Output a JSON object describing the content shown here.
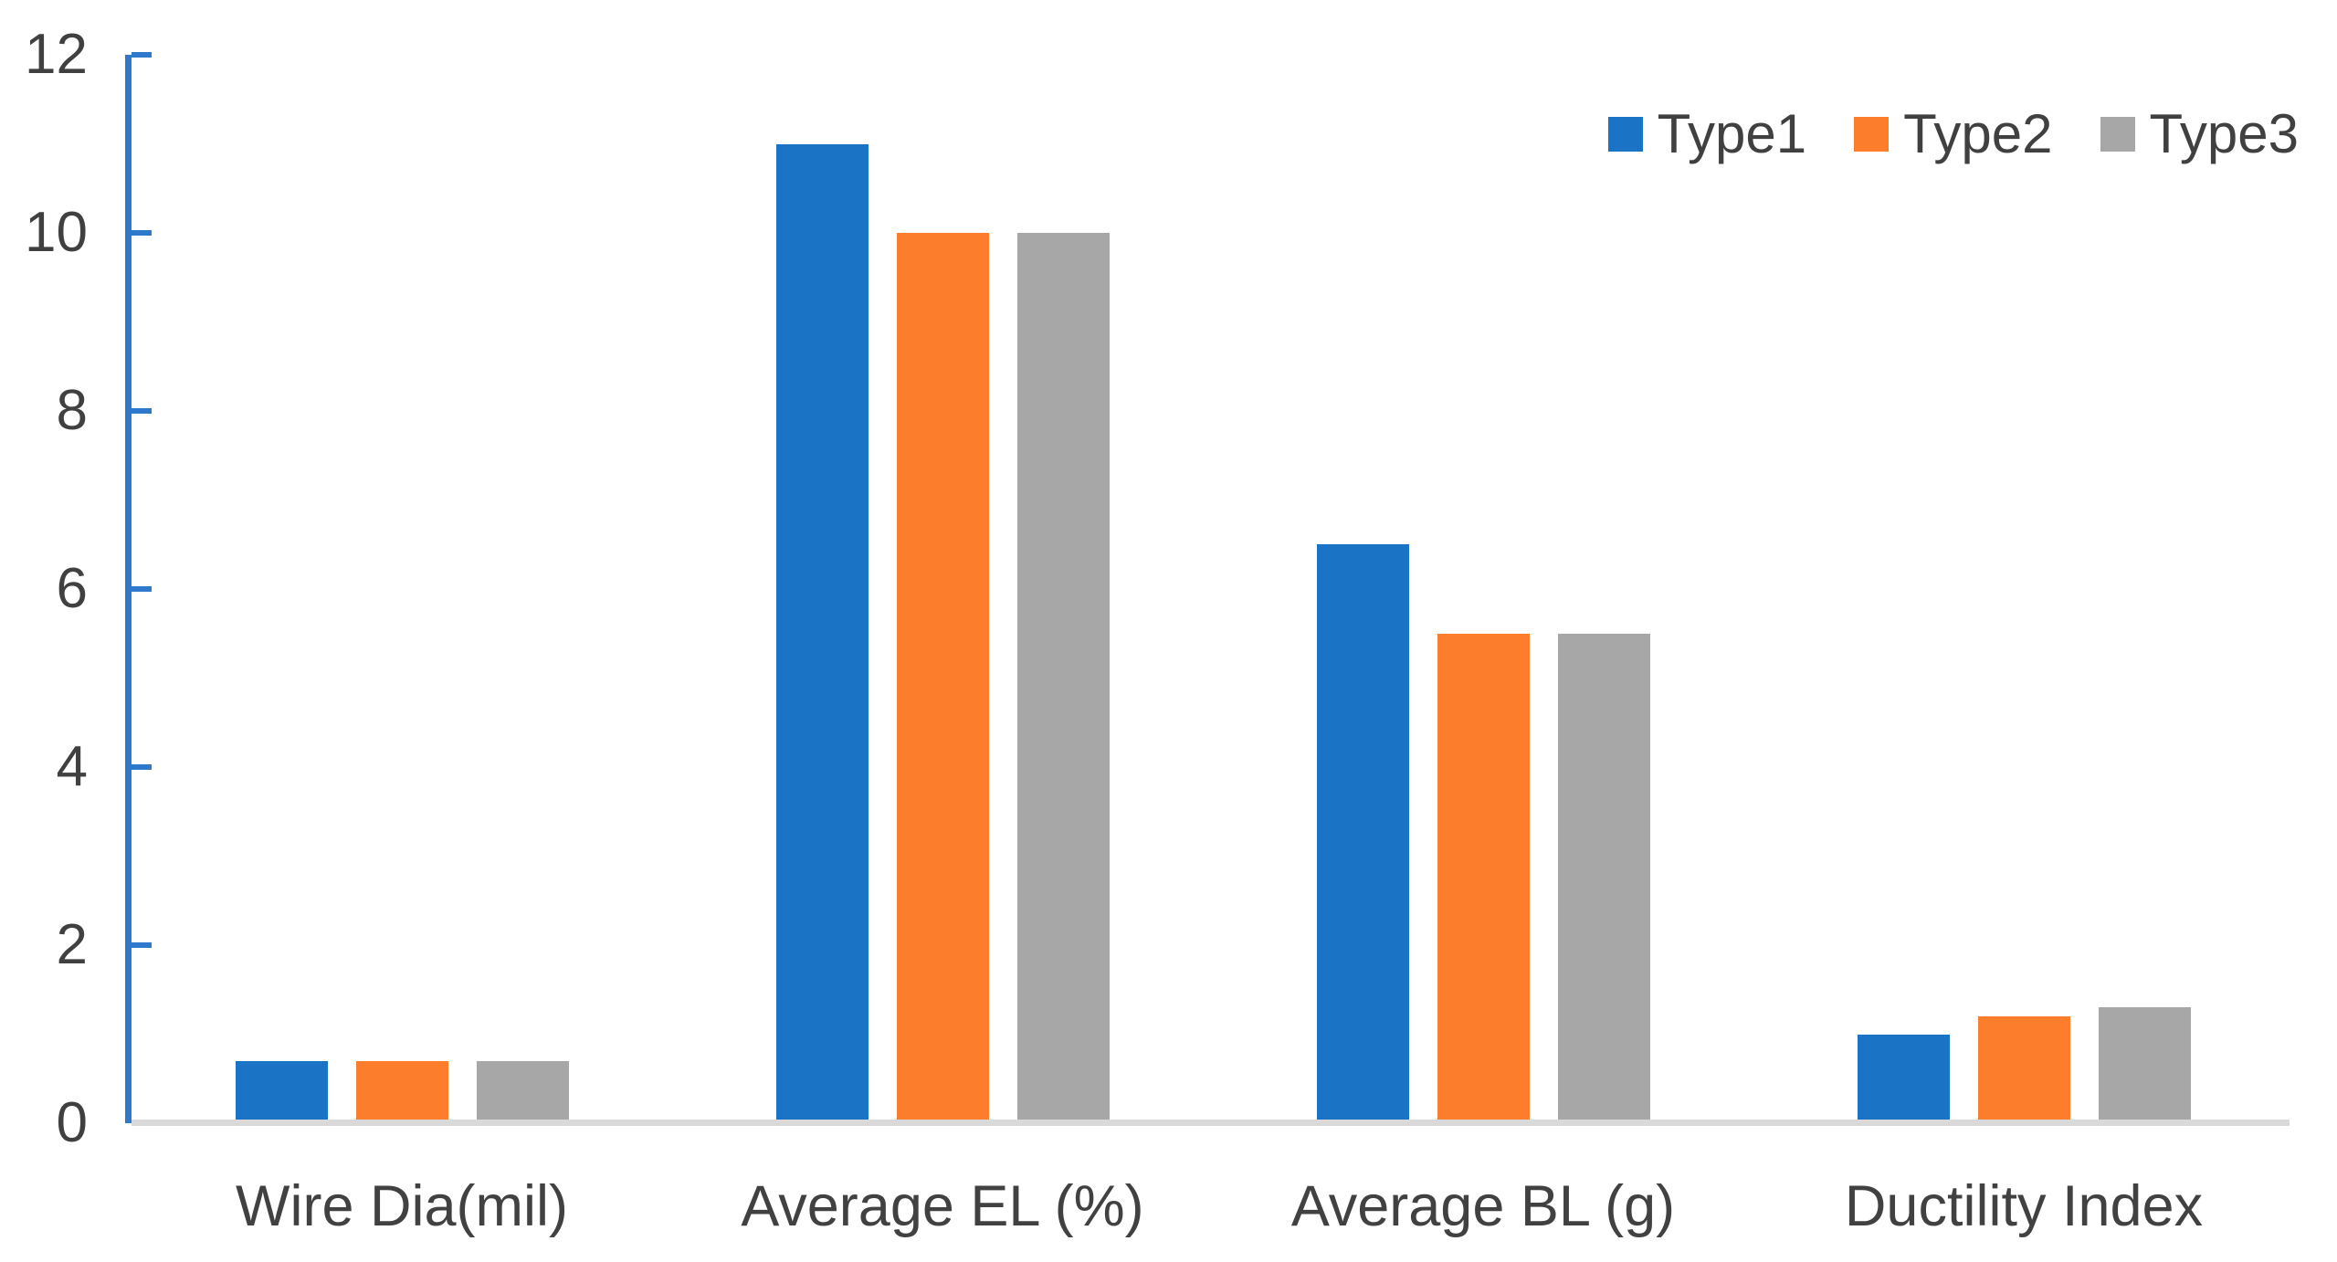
{
  "chart_data": {
    "type": "bar",
    "title": "",
    "categories": [
      "Wire Dia(mil)",
      "Average EL (%)",
      "Average BL (g)",
      "Ductility Index"
    ],
    "series": [
      {
        "name": "Type1",
        "color": "#1B73C6",
        "values": [
          0.7,
          11.0,
          6.5,
          1.0
        ]
      },
      {
        "name": "Type2",
        "color": "#FC7E2D",
        "values": [
          0.7,
          10.0,
          5.5,
          1.2
        ]
      },
      {
        "name": "Type3",
        "color": "#A7A7A7",
        "values": [
          0.7,
          10.0,
          5.5,
          1.3
        ]
      }
    ],
    "y_axis": {
      "min": 0,
      "max": 12,
      "tick_interval": 2,
      "tick_labels": [
        "0",
        "2",
        "4",
        "6",
        "8",
        "10",
        "12"
      ]
    },
    "xlabel": "",
    "ylabel": "",
    "grid": false,
    "legend_position": "top-right",
    "colors": {
      "axis_line": "#2E79CC",
      "baseline": "#D9D9D9",
      "tick_text": "#404040",
      "category_text": "#414141",
      "legend_text": "#404040",
      "background": "#FFFFFF"
    }
  }
}
